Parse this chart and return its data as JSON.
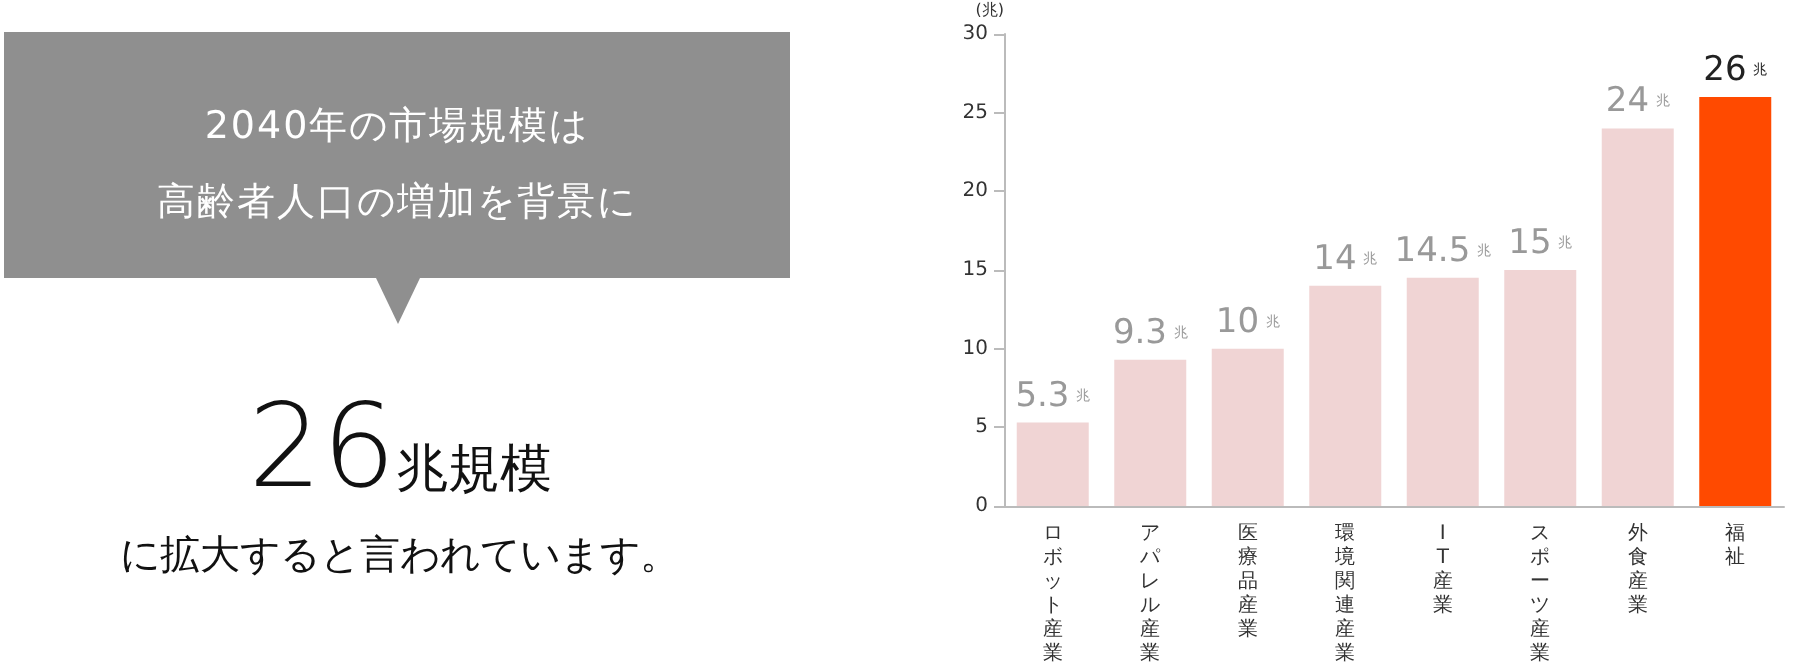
{
  "chart_data": [
    {
      "type": "other",
      "annotations": [
        "2040年の市場規模は",
        "高齢者人口の増加を背景に",
        "26",
        "兆規模",
        "に拡大すると言われています。"
      ]
    },
    {
      "type": "bar",
      "ylabel": "(兆)",
      "categories": [
        "ロボット産業",
        "アパレル産業",
        "医療品産業",
        "環境関連産業",
        "IT産業",
        "スポーツ産業",
        "外食産業",
        "福祉"
      ],
      "values": [
        5.3,
        9.3,
        10,
        14,
        14.5,
        15,
        24,
        26
      ],
      "colors": [
        "#f0d4d4",
        "#f0d4d4",
        "#f0d4d4",
        "#f0d4d4",
        "#f0d4d4",
        "#f0d4d4",
        "#f0d4d4",
        "#ff4a00"
      ],
      "value_labels": [
        "5.3 兆",
        "9.3 兆",
        "10 兆",
        "14 兆",
        "14.5 兆",
        "15 兆",
        "24 兆",
        "26 兆"
      ],
      "ylim": [
        0,
        30
      ],
      "yticks": [
        0,
        5,
        10,
        15,
        20,
        25,
        30
      ]
    }
  ]
}
